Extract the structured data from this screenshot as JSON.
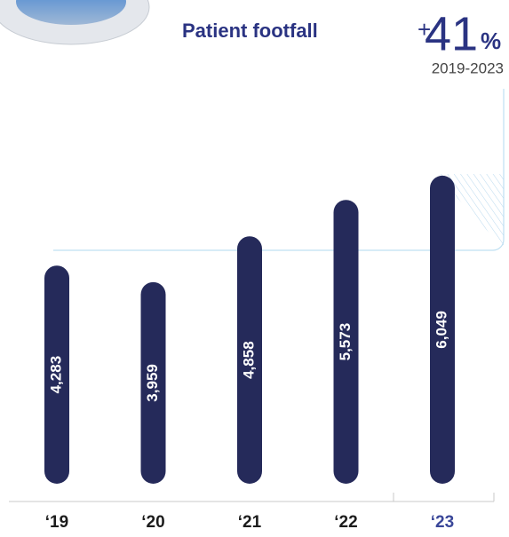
{
  "chart_data": {
    "type": "bar",
    "title": "Patient footfall",
    "change": {
      "sign": "+",
      "number": "41",
      "unit": "%"
    },
    "period": "2019-2023",
    "categories": [
      "‘19",
      "‘20",
      "‘21",
      "‘22",
      "‘23"
    ],
    "category_colors": [
      "#1c1c1c",
      "#1c1c1c",
      "#1c1c1c",
      "#1c1c1c",
      "#3a4799"
    ],
    "values": [
      4283,
      3959,
      4858,
      5573,
      6049
    ],
    "value_labels": [
      "4,283",
      "3,959",
      "4,858",
      "5,573",
      "6,049"
    ],
    "color": "#252a5a",
    "ylim": [
      0,
      6500
    ]
  }
}
